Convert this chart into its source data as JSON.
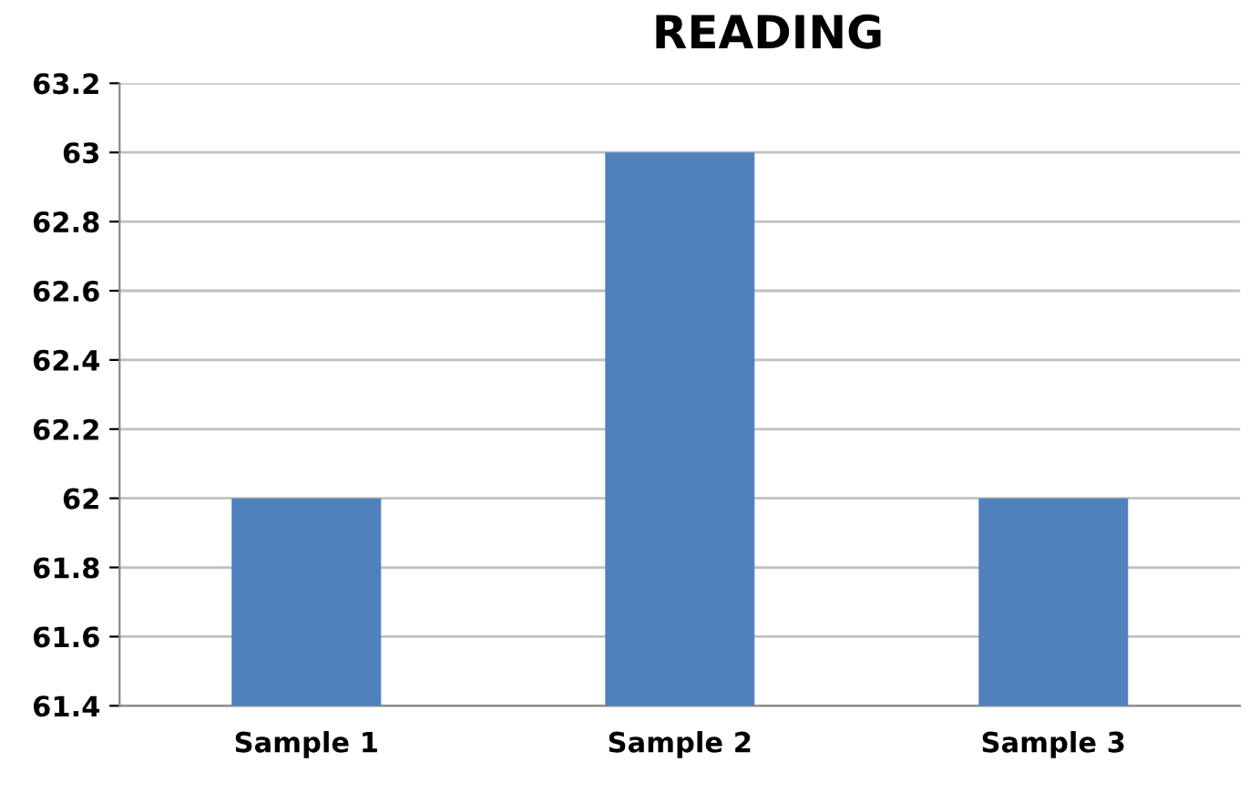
{
  "chart_data": {
    "type": "bar",
    "title": "READING",
    "categories": [
      "Sample 1",
      "Sample 2",
      "Sample 3"
    ],
    "values": [
      62,
      63,
      62
    ],
    "color": "#4f81bd",
    "ylim": [
      61.4,
      63.2
    ],
    "yticks": [
      61.4,
      61.6,
      61.8,
      62,
      62.2,
      62.4,
      62.6,
      62.8,
      63,
      63.2
    ],
    "grid": "y"
  }
}
